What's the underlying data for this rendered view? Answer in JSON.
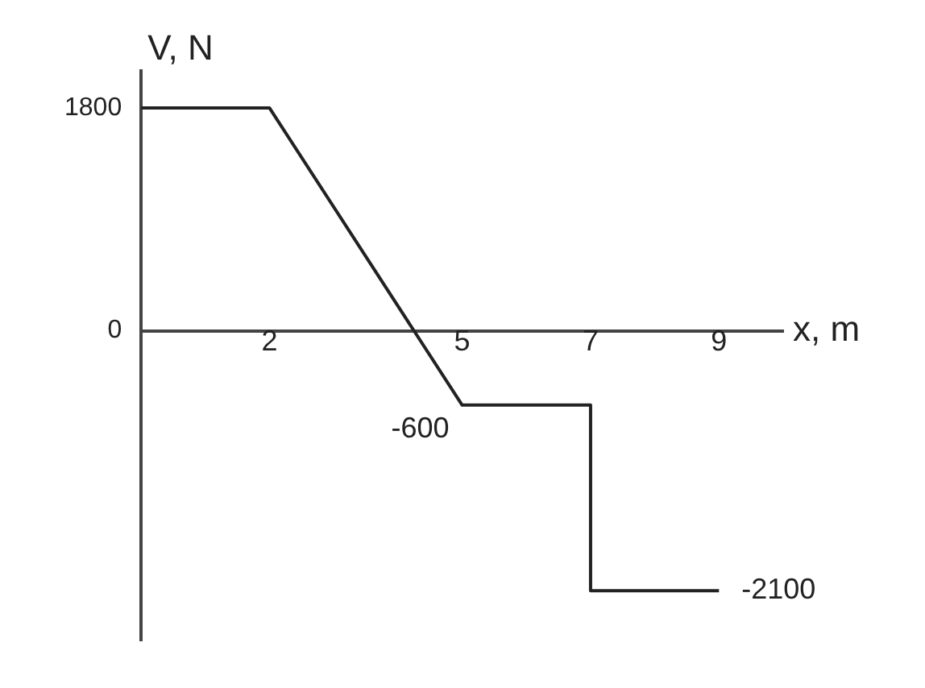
{
  "chart_data": {
    "type": "line",
    "xlabel": "x, m",
    "ylabel": "V, N",
    "x": [
      0,
      2,
      5,
      7,
      7,
      9
    ],
    "series": [
      {
        "color": "#222222",
        "values": [
          1800,
          1800,
          -600,
          -600,
          -2100,
          -2100
        ]
      }
    ],
    "xlim": [
      0,
      10
    ],
    "xticks": [
      2,
      5,
      7,
      9
    ],
    "ylim": [
      -2500,
      2100
    ],
    "yticks": [
      1800,
      0
    ],
    "annotations": [
      {
        "text": "-600",
        "x": 5,
        "y": -600
      },
      {
        "text": "-2100",
        "x": 9,
        "y": -2100
      }
    ],
    "grid": false,
    "legend": false,
    "marker": "none",
    "line_style": "solid"
  }
}
